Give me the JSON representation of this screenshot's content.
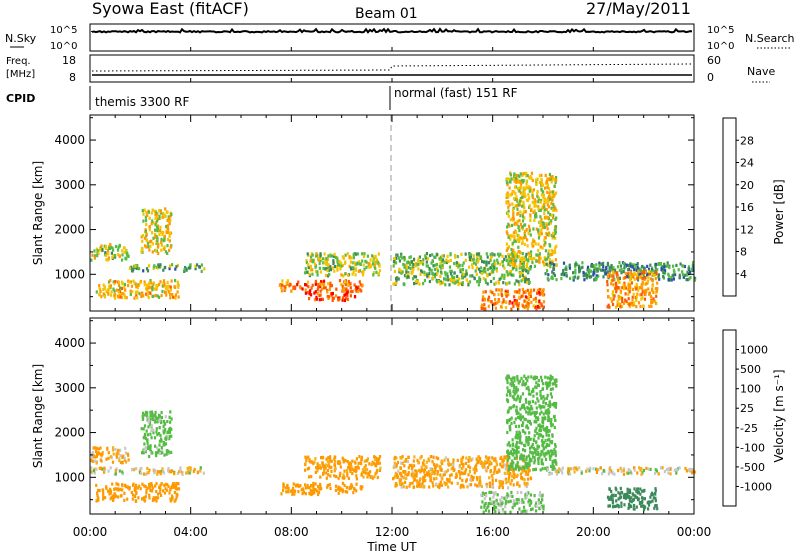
{
  "header": {
    "title": "Syowa East (fitACF)",
    "beam": "Beam 01",
    "date": "27/May/2011"
  },
  "strips": {
    "nsky_label": "N.Sky",
    "nsky_ticks": [
      "10^5",
      "10^0"
    ],
    "nsearch_label": "N.Search",
    "nsearch_ticks": [
      "10^5",
      "10^0"
    ],
    "freq_label_1": "Freq.",
    "freq_label_2": "[MHz]",
    "freq_ticks": [
      "18",
      "8"
    ],
    "nave_label": "Nave",
    "nave_ticks": [
      "60",
      "0"
    ],
    "cpid_label": "CPID",
    "cpid_segments": [
      "themis 3300 RF",
      "normal (fast) 151 RF"
    ]
  },
  "colors": {
    "power": [
      "#0000ff",
      "#2a4fa8",
      "#3c8a5a",
      "#55bb44",
      "#f5c400",
      "#ff9900",
      "#ff5a00",
      "#ff0000"
    ],
    "velocity": [
      "#ff0000",
      "#ff5a00",
      "#ff9900",
      "#f5b020",
      "#c8c8c8",
      "#c8c8c8",
      "#55bb44",
      "#3c8a5a",
      "#2a4fa8",
      "#1a30c0"
    ]
  },
  "axis": {
    "x_ticks": [
      "00:00",
      "04:00",
      "08:00",
      "12:00",
      "16:00",
      "20:00",
      "00:00"
    ],
    "x_label": "Time UT",
    "y_ticks": [
      "1000",
      "2000",
      "3000",
      "4000"
    ],
    "y_label": "Slant Range [km]"
  },
  "colorbars": {
    "power_ticks": [
      "4",
      "8",
      "12",
      "16",
      "20",
      "24",
      "28"
    ],
    "power_label": "Power [dB]",
    "velocity_ticks": [
      "-1000",
      "-500",
      "-100",
      "-25",
      "25",
      "100",
      "500",
      "1000"
    ],
    "velocity_label": "Velocity [m s⁻¹]"
  },
  "chart_data": [
    {
      "type": "heatmap",
      "title": "Power [dB]",
      "xlabel": "Time UT",
      "ylabel": "Slant Range [km]",
      "x_range_hours": [
        0,
        24
      ],
      "ylim": [
        180,
        4560
      ],
      "colorbar": {
        "label": "Power [dB]",
        "range": [
          0,
          32
        ],
        "ticks": [
          4,
          8,
          12,
          16,
          20,
          24,
          28
        ]
      },
      "echo_regions": [
        {
          "t": [
            0.0,
            1.5
          ],
          "r": [
            1350,
            1700
          ],
          "value": 16
        },
        {
          "t": [
            0.2,
            3.5
          ],
          "r": [
            500,
            900
          ],
          "value": 20
        },
        {
          "t": [
            1.5,
            4.5
          ],
          "r": [
            1100,
            1250
          ],
          "value": 12
        },
        {
          "t": [
            2.0,
            3.2
          ],
          "r": [
            1500,
            2500
          ],
          "value": 18
        },
        {
          "t": [
            7.5,
            10.8
          ],
          "r": [
            650,
            900
          ],
          "value": 24
        },
        {
          "t": [
            8.5,
            10.5
          ],
          "r": [
            450,
            650
          ],
          "value": 28
        },
        {
          "t": [
            8.5,
            11.5
          ],
          "r": [
            1000,
            1500
          ],
          "value": 16
        },
        {
          "t": [
            12.0,
            17.5
          ],
          "r": [
            800,
            1500
          ],
          "value": 14
        },
        {
          "t": [
            15.5,
            18.0
          ],
          "r": [
            250,
            700
          ],
          "value": 24
        },
        {
          "t": [
            16.5,
            18.5
          ],
          "r": [
            1200,
            3300
          ],
          "value": 18
        },
        {
          "t": [
            18.0,
            24.0
          ],
          "r": [
            900,
            1300
          ],
          "value": 10
        },
        {
          "t": [
            20.5,
            22.5
          ],
          "r": [
            300,
            1100
          ],
          "value": 22
        }
      ]
    },
    {
      "type": "heatmap",
      "title": "Velocity [m s⁻¹]",
      "xlabel": "Time UT",
      "ylabel": "Slant Range [km]",
      "x_range_hours": [
        0,
        24
      ],
      "ylim": [
        180,
        4560
      ],
      "colorbar": {
        "label": "Velocity [m s⁻¹]",
        "range": [
          -1000,
          1000
        ],
        "ticks": [
          -1000,
          -500,
          -100,
          -25,
          25,
          100,
          500,
          1000
        ]
      },
      "echo_regions": [
        {
          "t": [
            0.0,
            1.5
          ],
          "r": [
            1350,
            1700
          ],
          "value": -100
        },
        {
          "t": [
            0.2,
            3.5
          ],
          "r": [
            500,
            900
          ],
          "value": -300
        },
        {
          "t": [
            0.0,
            4.5
          ],
          "r": [
            1100,
            1250
          ],
          "value": 0
        },
        {
          "t": [
            2.0,
            3.2
          ],
          "r": [
            1500,
            2500
          ],
          "value": 200
        },
        {
          "t": [
            7.5,
            10.8
          ],
          "r": [
            650,
            900
          ],
          "value": -300
        },
        {
          "t": [
            8.5,
            11.5
          ],
          "r": [
            1000,
            1500
          ],
          "value": -200
        },
        {
          "t": [
            12.0,
            17.5
          ],
          "r": [
            800,
            1500
          ],
          "value": -150
        },
        {
          "t": [
            15.5,
            18.0
          ],
          "r": [
            250,
            700
          ],
          "value": 150
        },
        {
          "t": [
            16.5,
            18.5
          ],
          "r": [
            1200,
            3300
          ],
          "value": 300
        },
        {
          "t": [
            18.0,
            24.0
          ],
          "r": [
            1100,
            1250
          ],
          "value": 0
        },
        {
          "t": [
            20.5,
            22.5
          ],
          "r": [
            300,
            800
          ],
          "value": 700
        }
      ]
    }
  ]
}
